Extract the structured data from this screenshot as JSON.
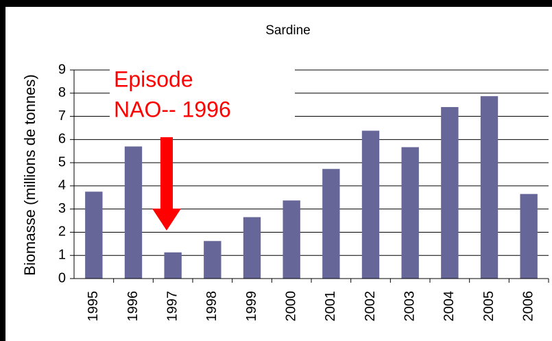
{
  "chart_data": {
    "type": "bar",
    "title": "Sardine",
    "y_label": "Biomasse (millions de tonnes)",
    "categories": [
      "1995",
      "1996",
      "1997",
      "1998",
      "1999",
      "2000",
      "2001",
      "2002",
      "2003",
      "2004",
      "2005",
      "2006"
    ],
    "values": [
      3.75,
      5.7,
      1.13,
      1.62,
      2.65,
      3.37,
      4.73,
      6.38,
      5.67,
      7.4,
      7.87,
      3.65
    ],
    "color": "#666699",
    "ylim": [
      0,
      9
    ],
    "yticks": [
      0,
      1,
      2,
      3,
      4,
      5,
      6,
      7,
      8,
      9
    ],
    "grid": true,
    "annotation": [
      "Episode",
      "NAO-- 1996"
    ],
    "annotation_color": "#ff0000"
  }
}
